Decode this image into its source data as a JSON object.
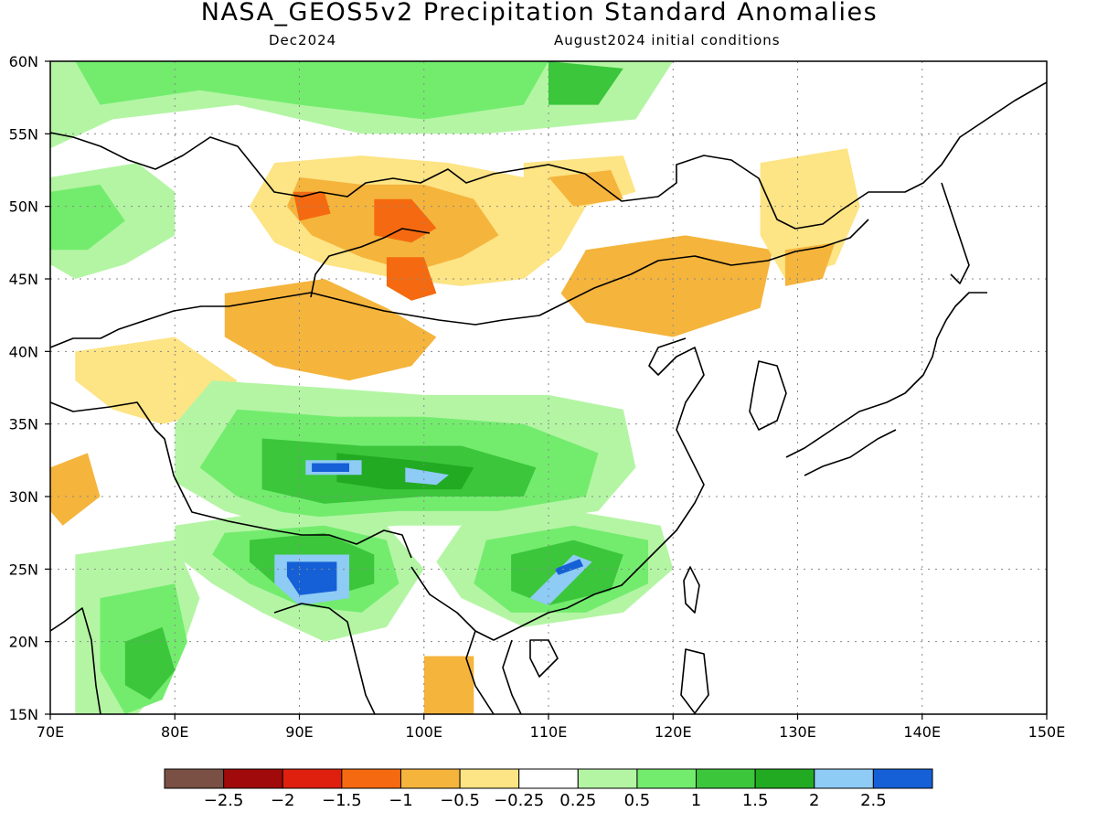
{
  "title": "NASA_GEOS5v2 Precipitation Standard Anomalies",
  "subtitle_left": "Dec2024",
  "subtitle_right": "August2024 initial conditions",
  "lat_labels": [
    "60N",
    "55N",
    "50N",
    "45N",
    "40N",
    "35N",
    "30N",
    "25N",
    "20N",
    "15N"
  ],
  "lon_labels": [
    "70E",
    "80E",
    "90E",
    "100E",
    "110E",
    "120E",
    "130E",
    "140E",
    "150E"
  ],
  "colorbar": {
    "labels": [
      "−2.5",
      "−2",
      "−1.5",
      "−1",
      "−0.5",
      "−0.25",
      "0.25",
      "0.5",
      "1",
      "1.5",
      "2",
      "2.5"
    ],
    "colors": [
      "#7a5045",
      "#a00a0a",
      "#e0200f",
      "#f56a10",
      "#f5b43c",
      "#fde484",
      "#ffffff",
      "#b4f5a4",
      "#73ec6e",
      "#3cc63c",
      "#22aa22",
      "#8ecbf5",
      "#1560d6"
    ]
  },
  "map": {
    "lon_range": [
      70,
      150
    ],
    "lat_range": [
      15,
      60
    ],
    "grid": "dotted",
    "regions": [
      {
        "level": "dry_0.25",
        "color": "#fde484",
        "points": [
          [
            88,
            53
          ],
          [
            95,
            53.5
          ],
          [
            102,
            53
          ],
          [
            108,
            52
          ],
          [
            113,
            50
          ],
          [
            111,
            47
          ],
          [
            108,
            45
          ],
          [
            103,
            44.5
          ],
          [
            98,
            45
          ],
          [
            92,
            46
          ],
          [
            88,
            47.5
          ],
          [
            86,
            50
          ]
        ]
      },
      {
        "level": "dry_0.5",
        "color": "#f5b43c",
        "points": [
          [
            90,
            52
          ],
          [
            95,
            51.5
          ],
          [
            100,
            51.5
          ],
          [
            104,
            50.5
          ],
          [
            106,
            48
          ],
          [
            103,
            46.5
          ],
          [
            99,
            45.5
          ],
          [
            95,
            46.5
          ],
          [
            91,
            48
          ],
          [
            89,
            50
          ]
        ]
      },
      {
        "level": "dry_1",
        "color": "#f56a10",
        "points": [
          [
            96,
            50.5
          ],
          [
            99,
            50.5
          ],
          [
            101,
            48.5
          ],
          [
            99,
            47.5
          ],
          [
            96,
            48
          ]
        ]
      },
      {
        "level": "dry_1",
        "color": "#f56a10",
        "points": [
          [
            97,
            46.5
          ],
          [
            100,
            46.5
          ],
          [
            101,
            44
          ],
          [
            99,
            43.5
          ],
          [
            97,
            44.5
          ]
        ]
      },
      {
        "level": "dry_1",
        "color": "#f56a10",
        "points": [
          [
            89.5,
            51
          ],
          [
            92,
            51
          ],
          [
            92.5,
            49.5
          ],
          [
            90,
            49
          ]
        ]
      },
      {
        "level": "dry_0.25",
        "color": "#fde484",
        "points": [
          [
            108,
            53
          ],
          [
            116,
            53.5
          ],
          [
            117,
            51
          ],
          [
            113,
            50
          ],
          [
            108,
            51
          ]
        ]
      },
      {
        "level": "dry_0.5",
        "color": "#f5b43c",
        "points": [
          [
            110,
            52
          ],
          [
            115,
            52.5
          ],
          [
            116,
            50.5
          ],
          [
            112,
            50
          ]
        ]
      },
      {
        "level": "dry_0.5",
        "color": "#f5b43c",
        "points": [
          [
            113,
            47
          ],
          [
            121,
            48
          ],
          [
            128,
            47
          ],
          [
            127,
            43
          ],
          [
            120,
            41
          ],
          [
            113,
            42
          ],
          [
            111,
            44
          ]
        ]
      },
      {
        "level": "dry_0.25",
        "color": "#fde484",
        "points": [
          [
            127,
            53
          ],
          [
            134,
            54
          ],
          [
            135,
            50
          ],
          [
            133,
            46
          ],
          [
            129,
            45
          ],
          [
            127,
            48
          ]
        ]
      },
      {
        "level": "dry_0.5",
        "color": "#f5b43c",
        "points": [
          [
            129,
            47
          ],
          [
            133,
            47.5
          ],
          [
            132,
            45
          ],
          [
            129,
            44.5
          ]
        ]
      },
      {
        "level": "dry_0.5",
        "color": "#f5b43c",
        "points": [
          [
            84,
            44
          ],
          [
            92,
            45
          ],
          [
            97,
            43
          ],
          [
            101,
            41
          ],
          [
            99,
            39
          ],
          [
            94,
            38
          ],
          [
            88,
            39
          ],
          [
            84,
            41
          ]
        ]
      },
      {
        "level": "dry_0.25",
        "color": "#fde484",
        "points": [
          [
            72,
            40
          ],
          [
            80,
            41
          ],
          [
            85,
            38
          ],
          [
            84,
            36
          ],
          [
            79,
            35
          ],
          [
            75,
            36
          ],
          [
            72,
            38
          ]
        ]
      },
      {
        "level": "dry_0.5",
        "color": "#f5b43c",
        "points": [
          [
            70,
            32
          ],
          [
            73,
            33
          ],
          [
            74,
            30
          ],
          [
            71,
            28
          ],
          [
            70,
            29
          ]
        ]
      },
      {
        "level": "dry_0.5",
        "color": "#f5b43c",
        "points": [
          [
            100,
            19
          ],
          [
            104,
            19
          ],
          [
            104,
            15
          ],
          [
            100,
            15
          ]
        ]
      },
      {
        "level": "wet_0.25",
        "color": "#b4f5a4",
        "points": [
          [
            70,
            60
          ],
          [
            120,
            60
          ],
          [
            117,
            56
          ],
          [
            105,
            55
          ],
          [
            95,
            55
          ],
          [
            85,
            57
          ],
          [
            75,
            56
          ],
          [
            70,
            54
          ]
        ]
      },
      {
        "level": "wet_0.5",
        "color": "#73ec6e",
        "points": [
          [
            72,
            60
          ],
          [
            110,
            60
          ],
          [
            108,
            57
          ],
          [
            100,
            56
          ],
          [
            90,
            57
          ],
          [
            82,
            58
          ],
          [
            74,
            57
          ]
        ]
      },
      {
        "level": "wet_1",
        "color": "#3cc63c",
        "points": [
          [
            110,
            60
          ],
          [
            116,
            59.5
          ],
          [
            114,
            57
          ],
          [
            110,
            57
          ]
        ]
      },
      {
        "level": "wet_0.25",
        "color": "#b4f5a4",
        "points": [
          [
            70,
            52
          ],
          [
            77,
            53
          ],
          [
            80,
            51
          ],
          [
            80,
            48
          ],
          [
            76,
            46
          ],
          [
            72,
            45
          ],
          [
            70,
            46
          ]
        ]
      },
      {
        "level": "wet_0.5",
        "color": "#73ec6e",
        "points": [
          [
            70,
            51
          ],
          [
            74,
            51.5
          ],
          [
            76,
            49
          ],
          [
            73,
            47
          ],
          [
            70,
            47
          ]
        ]
      },
      {
        "level": "wet_0.25",
        "color": "#b4f5a4",
        "points": [
          [
            83,
            38
          ],
          [
            92,
            37.5
          ],
          [
            100,
            37
          ],
          [
            110,
            37
          ],
          [
            116,
            36
          ],
          [
            117,
            32
          ],
          [
            114,
            29
          ],
          [
            106,
            28
          ],
          [
            98,
            28
          ],
          [
            90,
            27.5
          ],
          [
            84,
            29
          ],
          [
            80,
            31
          ],
          [
            80,
            35
          ]
        ]
      },
      {
        "level": "wet_0.5",
        "color": "#73ec6e",
        "points": [
          [
            85,
            36
          ],
          [
            93,
            35.5
          ],
          [
            100,
            35.5
          ],
          [
            108,
            35
          ],
          [
            114,
            33
          ],
          [
            113,
            30
          ],
          [
            106,
            29
          ],
          [
            98,
            29
          ],
          [
            90,
            28.5
          ],
          [
            85,
            30
          ],
          [
            82,
            32
          ]
        ]
      },
      {
        "level": "wet_1",
        "color": "#3cc63c",
        "points": [
          [
            87,
            34
          ],
          [
            95,
            33.5
          ],
          [
            103,
            33.5
          ],
          [
            109,
            32
          ],
          [
            108,
            30
          ],
          [
            100,
            30
          ],
          [
            92,
            29.5
          ],
          [
            87,
            30.5
          ]
        ]
      },
      {
        "level": "wet_1.5",
        "color": "#22aa22",
        "points": [
          [
            93,
            33
          ],
          [
            99,
            32.5
          ],
          [
            104,
            32
          ],
          [
            103,
            30.5
          ],
          [
            97,
            30.5
          ],
          [
            93,
            31
          ]
        ]
      },
      {
        "level": "wet_2",
        "color": "#8ecbf5",
        "points": [
          [
            90.5,
            32.5
          ],
          [
            95,
            32.5
          ],
          [
            95,
            31.5
          ],
          [
            90.5,
            31.5
          ]
        ]
      },
      {
        "level": "wet_2",
        "color": "#8ecbf5",
        "points": [
          [
            98.5,
            32
          ],
          [
            102,
            31.5
          ],
          [
            101,
            30.8
          ],
          [
            98.5,
            31
          ]
        ]
      },
      {
        "level": "wet_2.5",
        "color": "#1560d6",
        "points": [
          [
            91,
            32.3
          ],
          [
            94,
            32.3
          ],
          [
            94,
            31.7
          ],
          [
            91,
            31.7
          ]
        ]
      },
      {
        "level": "wet_0.25",
        "color": "#b4f5a4",
        "points": [
          [
            80,
            28
          ],
          [
            88,
            29
          ],
          [
            97,
            28
          ],
          [
            100,
            25
          ],
          [
            97,
            21
          ],
          [
            92,
            20
          ],
          [
            87,
            22
          ],
          [
            83,
            24
          ],
          [
            80,
            26
          ]
        ]
      },
      {
        "level": "wet_0.5",
        "color": "#73ec6e",
        "points": [
          [
            84,
            27.5
          ],
          [
            92,
            28
          ],
          [
            97,
            27
          ],
          [
            98,
            24
          ],
          [
            95,
            22
          ],
          [
            90,
            22.5
          ],
          [
            86,
            24
          ],
          [
            83,
            26
          ]
        ]
      },
      {
        "level": "wet_1",
        "color": "#3cc63c",
        "points": [
          [
            86,
            27
          ],
          [
            92,
            27.5
          ],
          [
            96,
            26
          ],
          [
            96,
            24
          ],
          [
            92,
            23
          ],
          [
            88,
            24
          ],
          [
            86,
            25.5
          ]
        ]
      },
      {
        "level": "wet_2",
        "color": "#8ecbf5",
        "points": [
          [
            88,
            26
          ],
          [
            94,
            26
          ],
          [
            94,
            23
          ],
          [
            90,
            22.5
          ],
          [
            88,
            24
          ]
        ]
      },
      {
        "level": "wet_2.5",
        "color": "#1560d6",
        "points": [
          [
            89,
            25.5
          ],
          [
            93,
            25.5
          ],
          [
            93,
            23.5
          ],
          [
            90,
            23.2
          ],
          [
            89,
            24.5
          ]
        ]
      },
      {
        "level": "wet_0.25",
        "color": "#b4f5a4",
        "points": [
          [
            103,
            28
          ],
          [
            112,
            29
          ],
          [
            119,
            28
          ],
          [
            120,
            25
          ],
          [
            116,
            22
          ],
          [
            108,
            21
          ],
          [
            103,
            23
          ],
          [
            101,
            25.5
          ]
        ]
      },
      {
        "level": "wet_0.5",
        "color": "#73ec6e",
        "points": [
          [
            105,
            27
          ],
          [
            112,
            28
          ],
          [
            118,
            27
          ],
          [
            118,
            24
          ],
          [
            113,
            22
          ],
          [
            107,
            22
          ],
          [
            104,
            24
          ]
        ]
      },
      {
        "level": "wet_1",
        "color": "#3cc63c",
        "points": [
          [
            107,
            26
          ],
          [
            112,
            27
          ],
          [
            116,
            26
          ],
          [
            115,
            23.5
          ],
          [
            110,
            22.5
          ],
          [
            107,
            23.5
          ]
        ]
      },
      {
        "level": "wet_2",
        "color": "#8ecbf5",
        "points": [
          [
            108.5,
            23
          ],
          [
            112,
            26
          ],
          [
            113.5,
            25.5
          ],
          [
            110,
            22.5
          ]
        ]
      },
      {
        "level": "wet_2.5",
        "color": "#1560d6",
        "points": [
          [
            110.5,
            25
          ],
          [
            112.5,
            25.7
          ],
          [
            112.8,
            25.2
          ],
          [
            110.8,
            24.6
          ]
        ]
      },
      {
        "level": "wet_0.25",
        "color": "#b4f5a4",
        "points": [
          [
            72,
            26
          ],
          [
            80,
            27
          ],
          [
            82,
            23
          ],
          [
            80,
            18
          ],
          [
            77,
            15
          ],
          [
            72,
            15
          ],
          [
            72,
            20
          ]
        ]
      },
      {
        "level": "wet_0.5",
        "color": "#73ec6e",
        "points": [
          [
            74,
            23
          ],
          [
            80,
            24
          ],
          [
            81,
            20
          ],
          [
            79,
            16
          ],
          [
            76,
            15
          ],
          [
            74,
            18
          ]
        ]
      },
      {
        "level": "wet_1",
        "color": "#3cc63c",
        "points": [
          [
            76,
            20
          ],
          [
            79,
            21
          ],
          [
            80,
            18
          ],
          [
            78,
            16
          ],
          [
            76,
            17
          ]
        ]
      }
    ]
  }
}
